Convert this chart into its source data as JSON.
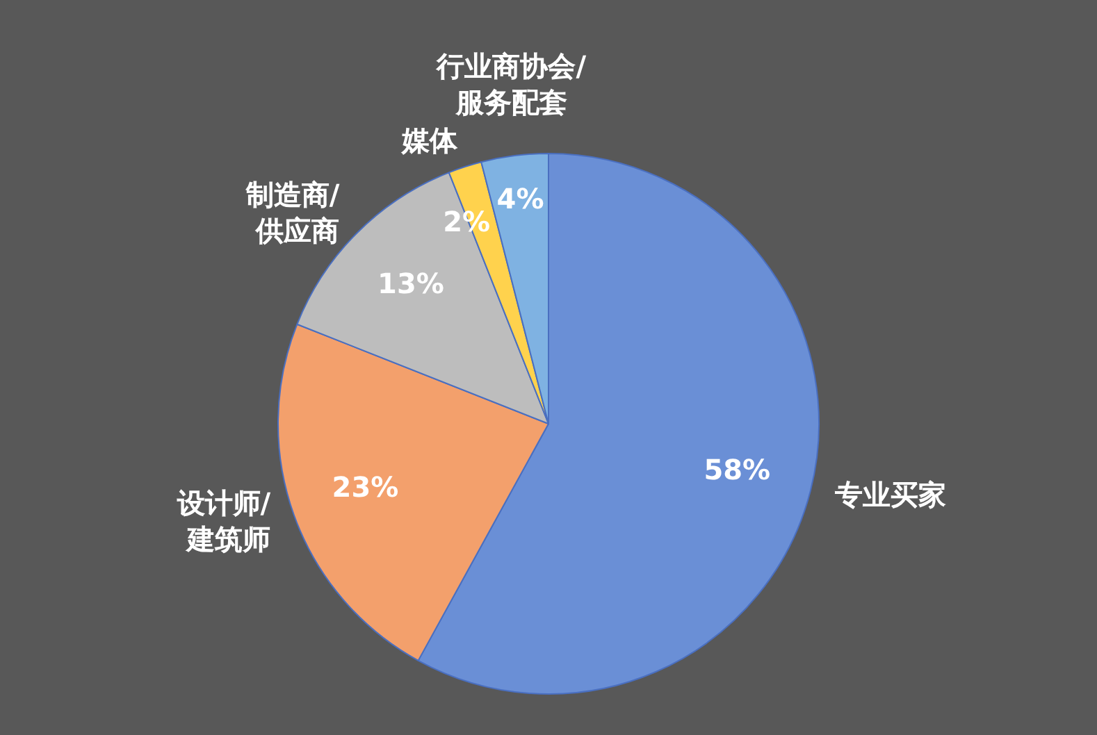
{
  "chart_data": {
    "type": "pie",
    "categories": [
      "专业买家",
      "设计师/建筑师",
      "制造商/供应商",
      "媒体",
      "行业商协会/服务配套"
    ],
    "values": [
      58,
      23,
      13,
      2,
      4
    ],
    "colors": [
      "#6a8fd6",
      "#f3a06c",
      "#bdbdbd",
      "#ffd24d",
      "#7fb2e2"
    ],
    "value_labels": [
      "58%",
      "23%",
      "13%",
      "2%",
      "4%"
    ],
    "legend": false
  }
}
